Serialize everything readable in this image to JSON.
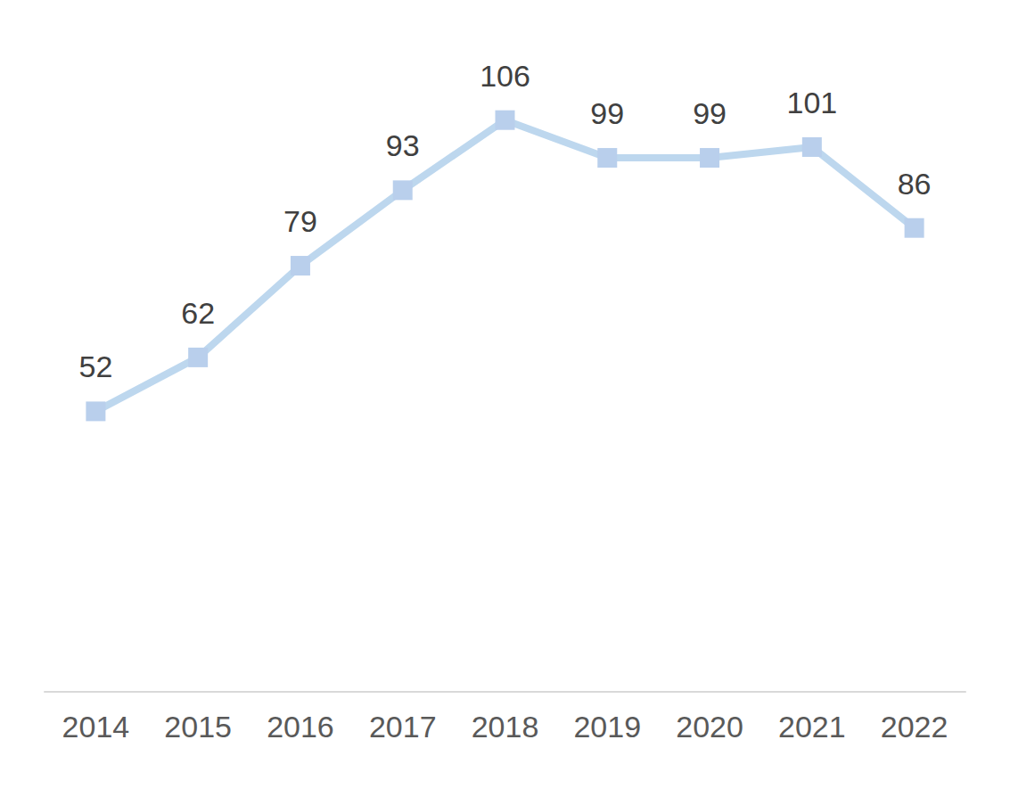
{
  "chart_data": {
    "type": "line",
    "categories": [
      "2014",
      "2015",
      "2016",
      "2017",
      "2018",
      "2019",
      "2020",
      "2021",
      "2022"
    ],
    "values": [
      52,
      62,
      79,
      93,
      106,
      99,
      99,
      101,
      86
    ],
    "color": "#b9cfec",
    "marker": "square",
    "ylim": [
      0,
      120
    ],
    "grid": false,
    "data_labels": true,
    "tick_labels": "x"
  }
}
